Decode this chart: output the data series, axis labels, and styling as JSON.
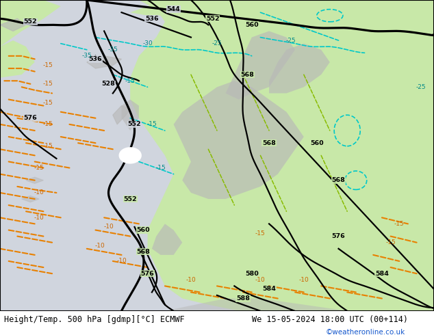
{
  "title_left": "Height/Temp. 500 hPa [gdmp][°C] ECMWF",
  "title_right": "We 15-05-2024 18:00 UTC (00+114)",
  "credit": "©weatheronline.co.uk",
  "ocean_color": "#d0d5de",
  "green_color": "#c8e8a8",
  "gray_land": "#b8b8b8",
  "black_line": "#000000",
  "cyan_color": "#00c8c8",
  "orange_color": "#e88000",
  "green_dash": "#88bb00",
  "title_fontsize": 8.5,
  "credit_color": "#1155cc",
  "fig_w": 6.34,
  "fig_h": 4.9,
  "dpi": 100
}
